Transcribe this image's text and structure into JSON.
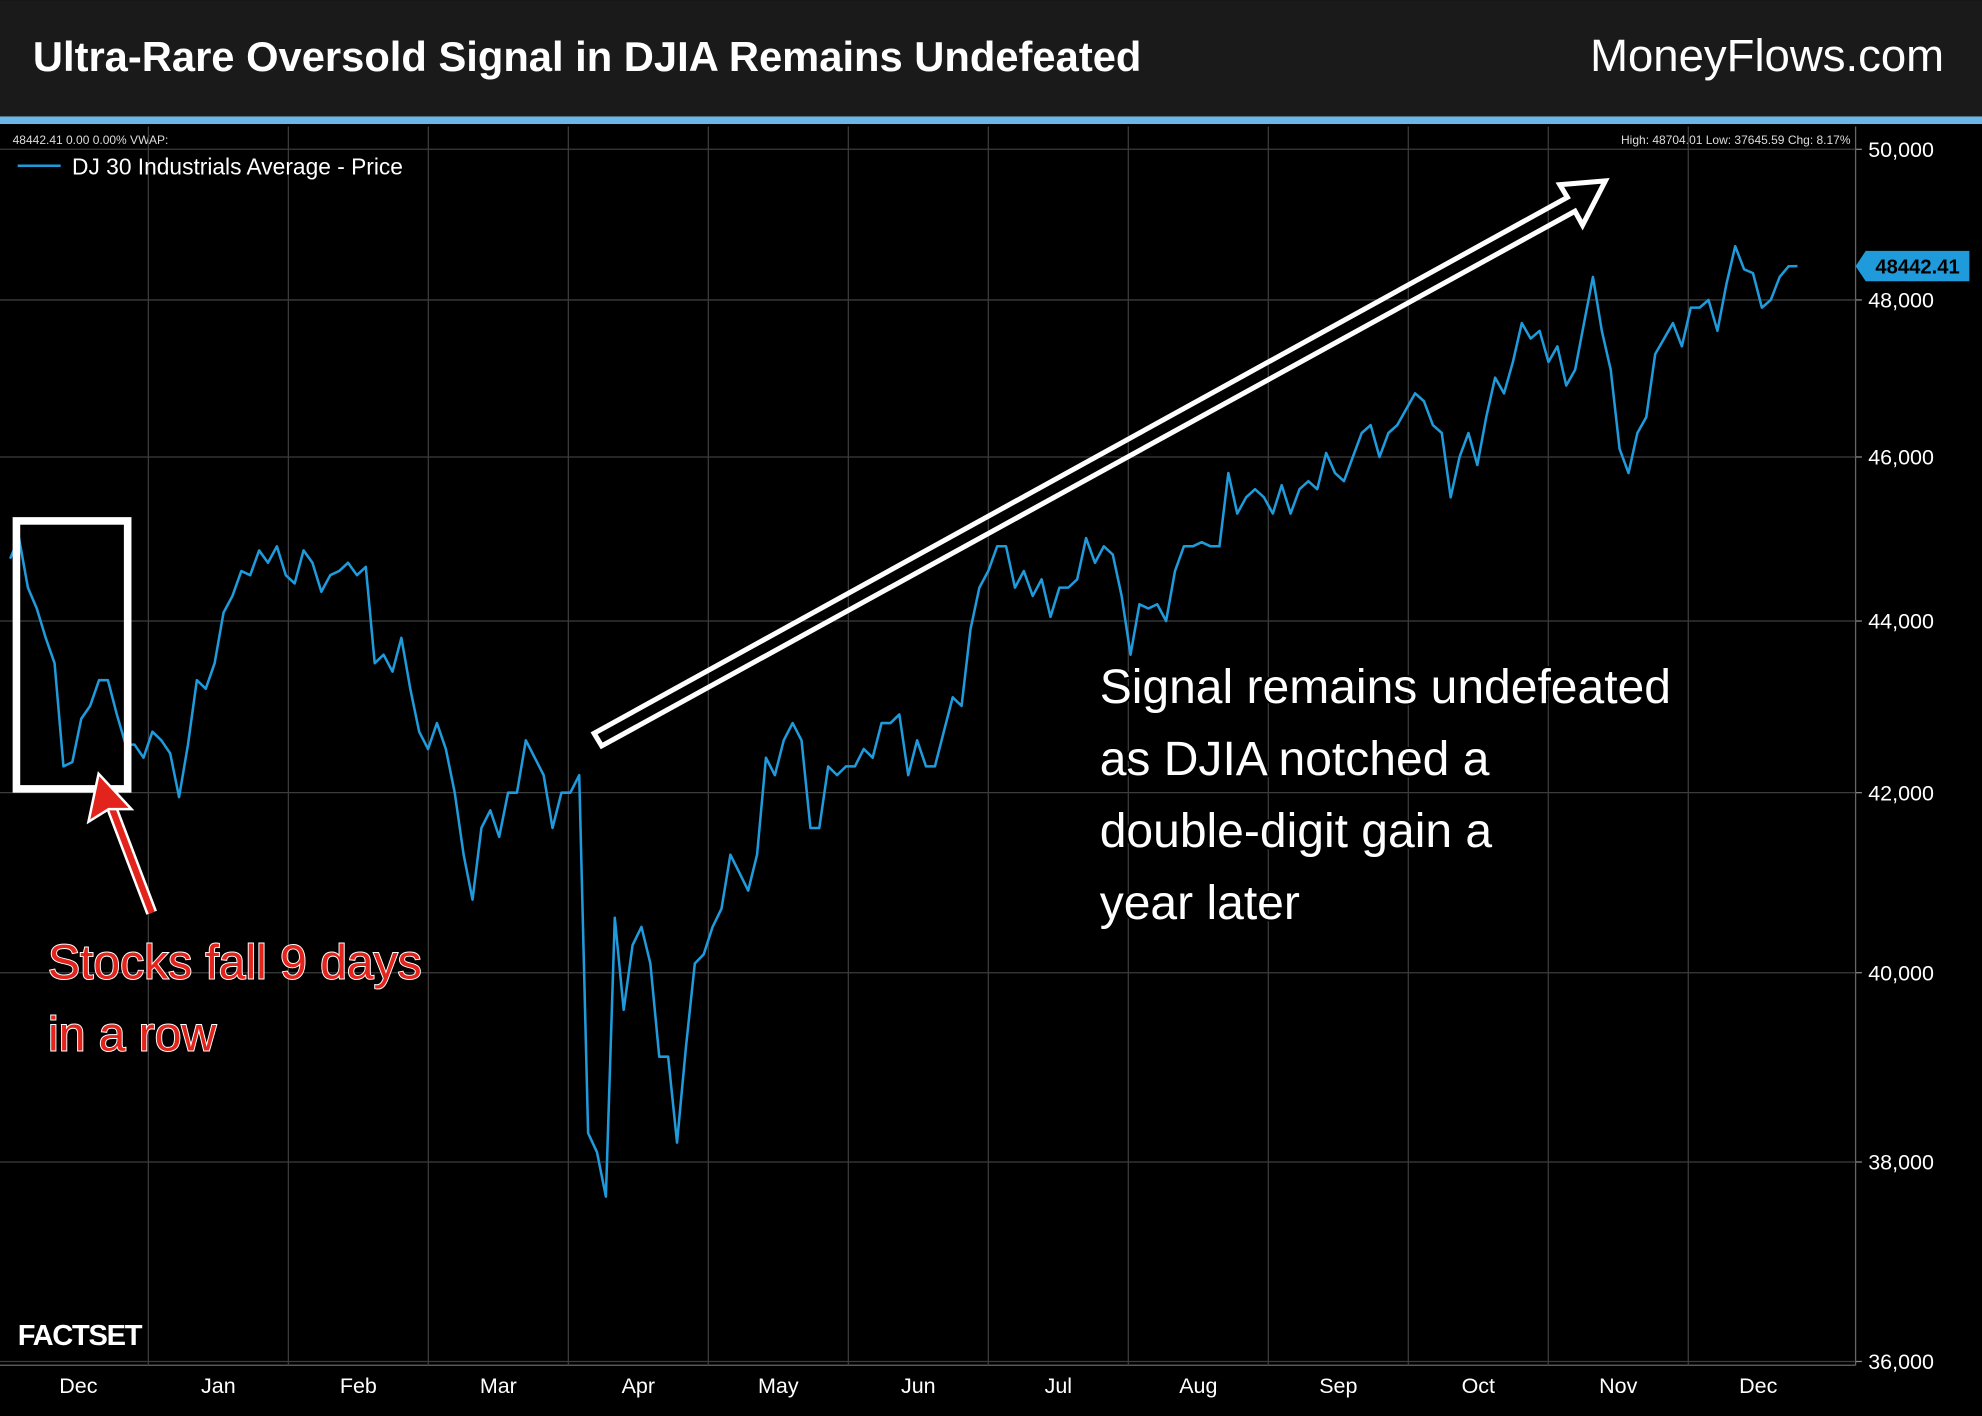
{
  "header": {
    "title": "Ultra-Rare Oversold Signal in DJIA Remains Undefeated",
    "brand": "MoneyFlows.com"
  },
  "chart_data": {
    "type": "line",
    "info_left": "48442.41 0.00 0.00% VWAP:",
    "info_right": "High: 48704.01 Low: 37645.59 Chg: 8.17%",
    "month_labels": [
      "Dec",
      "Jan",
      "Feb",
      "Mar",
      "Apr",
      "May",
      "Jun",
      "Jul",
      "Aug",
      "Sep",
      "Oct",
      "Nov",
      "Dec"
    ],
    "log_scale": true,
    "grid": true,
    "legend": "top-left",
    "ylim": [
      36000,
      50000
    ],
    "yticks": [
      {
        "value": 36000,
        "label": "36,000"
      },
      {
        "value": 38000,
        "label": "38,000"
      },
      {
        "value": 40000,
        "label": "40,000"
      },
      {
        "value": 42000,
        "label": "42,000"
      },
      {
        "value": 44000,
        "label": "44,000"
      },
      {
        "value": 46000,
        "label": "46,000"
      },
      {
        "value": 48000,
        "label": "48,000"
      },
      {
        "value": 50000,
        "label": "50,000"
      }
    ],
    "series": [
      {
        "name": "DJ 30 Industrials Average - Price",
        "color": "#1f9bdc",
        "values": [
          44750,
          45000,
          44400,
          44150,
          43800,
          43500,
          42300,
          42350,
          42850,
          43000,
          43300,
          43300,
          42900,
          42550,
          42550,
          42400,
          42700,
          42600,
          42450,
          41950,
          42550,
          43300,
          43200,
          43500,
          44100,
          44300,
          44600,
          44550,
          44850,
          44700,
          44900,
          44550,
          44450,
          44850,
          44700,
          44350,
          44550,
          44600,
          44700,
          44550,
          44650,
          43500,
          43600,
          43400,
          43800,
          43200,
          42700,
          42500,
          42800,
          42500,
          42000,
          41300,
          40800,
          41600,
          41800,
          41500,
          42000,
          42000,
          42600,
          42400,
          42200,
          41600,
          42000,
          42000,
          42200,
          38300,
          38100,
          37645,
          40600,
          39600,
          40300,
          40500,
          40100,
          39100,
          39100,
          38200,
          39200,
          40100,
          40200,
          40500,
          40700,
          41300,
          41100,
          40900,
          41300,
          42400,
          42200,
          42600,
          42800,
          42600,
          41600,
          41600,
          42300,
          42200,
          42300,
          42300,
          42500,
          42400,
          42800,
          42800,
          42900,
          42200,
          42600,
          42300,
          42300,
          42700,
          43100,
          43000,
          43900,
          44400,
          44600,
          44900,
          44900,
          44400,
          44600,
          44300,
          44500,
          44050,
          44400,
          44400,
          44500,
          45000,
          44700,
          44900,
          44800,
          44300,
          43600,
          44200,
          44150,
          44200,
          44000,
          44600,
          44900,
          44900,
          44950,
          44900,
          44900,
          45800,
          45300,
          45500,
          45600,
          45500,
          45300,
          45650,
          45300,
          45600,
          45700,
          45600,
          46050,
          45800,
          45700,
          46000,
          46300,
          46400,
          46000,
          46300,
          46400,
          46600,
          46800,
          46700,
          46400,
          46300,
          45500,
          46000,
          46300,
          45900,
          46500,
          47000,
          46800,
          47200,
          47700,
          47500,
          47600,
          47200,
          47400,
          46900,
          47100,
          47700,
          48300,
          47600,
          47100,
          46100,
          45800,
          46300,
          46500,
          47300,
          47500,
          47700,
          47400,
          47900,
          47900,
          48000,
          47600,
          48200,
          48704,
          48400,
          48350,
          47900,
          48000,
          48300,
          48440,
          48442.41
        ],
        "last_label": "48442.41"
      }
    ],
    "annotations": {
      "left": [
        "Stocks fall 9 days",
        "in a row"
      ],
      "right": [
        "Signal remains undefeated",
        "as DJIA notched a",
        "double-digit gain a",
        "year later"
      ]
    },
    "source": "FACTSET"
  }
}
